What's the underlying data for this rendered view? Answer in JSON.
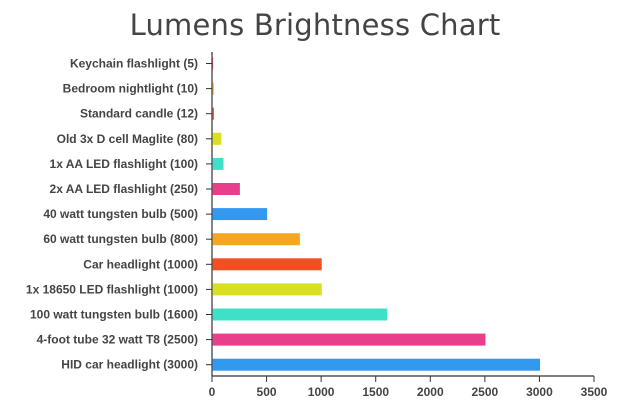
{
  "chart_data": {
    "type": "bar",
    "orientation": "horizontal",
    "title": "Lumens Brightness Chart",
    "xlabel": "",
    "ylabel": "",
    "xlim": [
      0,
      3500
    ],
    "ticks": [
      0,
      500,
      1000,
      1500,
      2000,
      2500,
      3000,
      3500
    ],
    "grid": false,
    "legend": "none",
    "categories": [
      "Keychain flashlight (5)",
      "Bedroom nightlight (10)",
      "Standard candle (12)",
      "Old 3x D cell Maglite (80)",
      "1x AA LED flashlight (100)",
      "2x AA LED flashlight (250)",
      "40 watt tungsten bulb (500)",
      "60 watt tungsten bulb (800)",
      "Car headlight (1000)",
      "1x 18650 LED flashlight (1000)",
      "100 watt tungsten bulb (1600)",
      "4-foot tube 32 watt T8 (2500)",
      "HID car headlight (3000)"
    ],
    "values": [
      5,
      10,
      12,
      80,
      100,
      250,
      500,
      800,
      1000,
      1000,
      1600,
      2500,
      3000
    ],
    "colors": [
      "#e83e8c",
      "#f5a623",
      "#f25022",
      "#d9e021",
      "#40e0c8",
      "#e83e8c",
      "#3399ee",
      "#f5a623",
      "#f25022",
      "#d9e021",
      "#40e0c8",
      "#e83e8c",
      "#3399ee"
    ]
  }
}
